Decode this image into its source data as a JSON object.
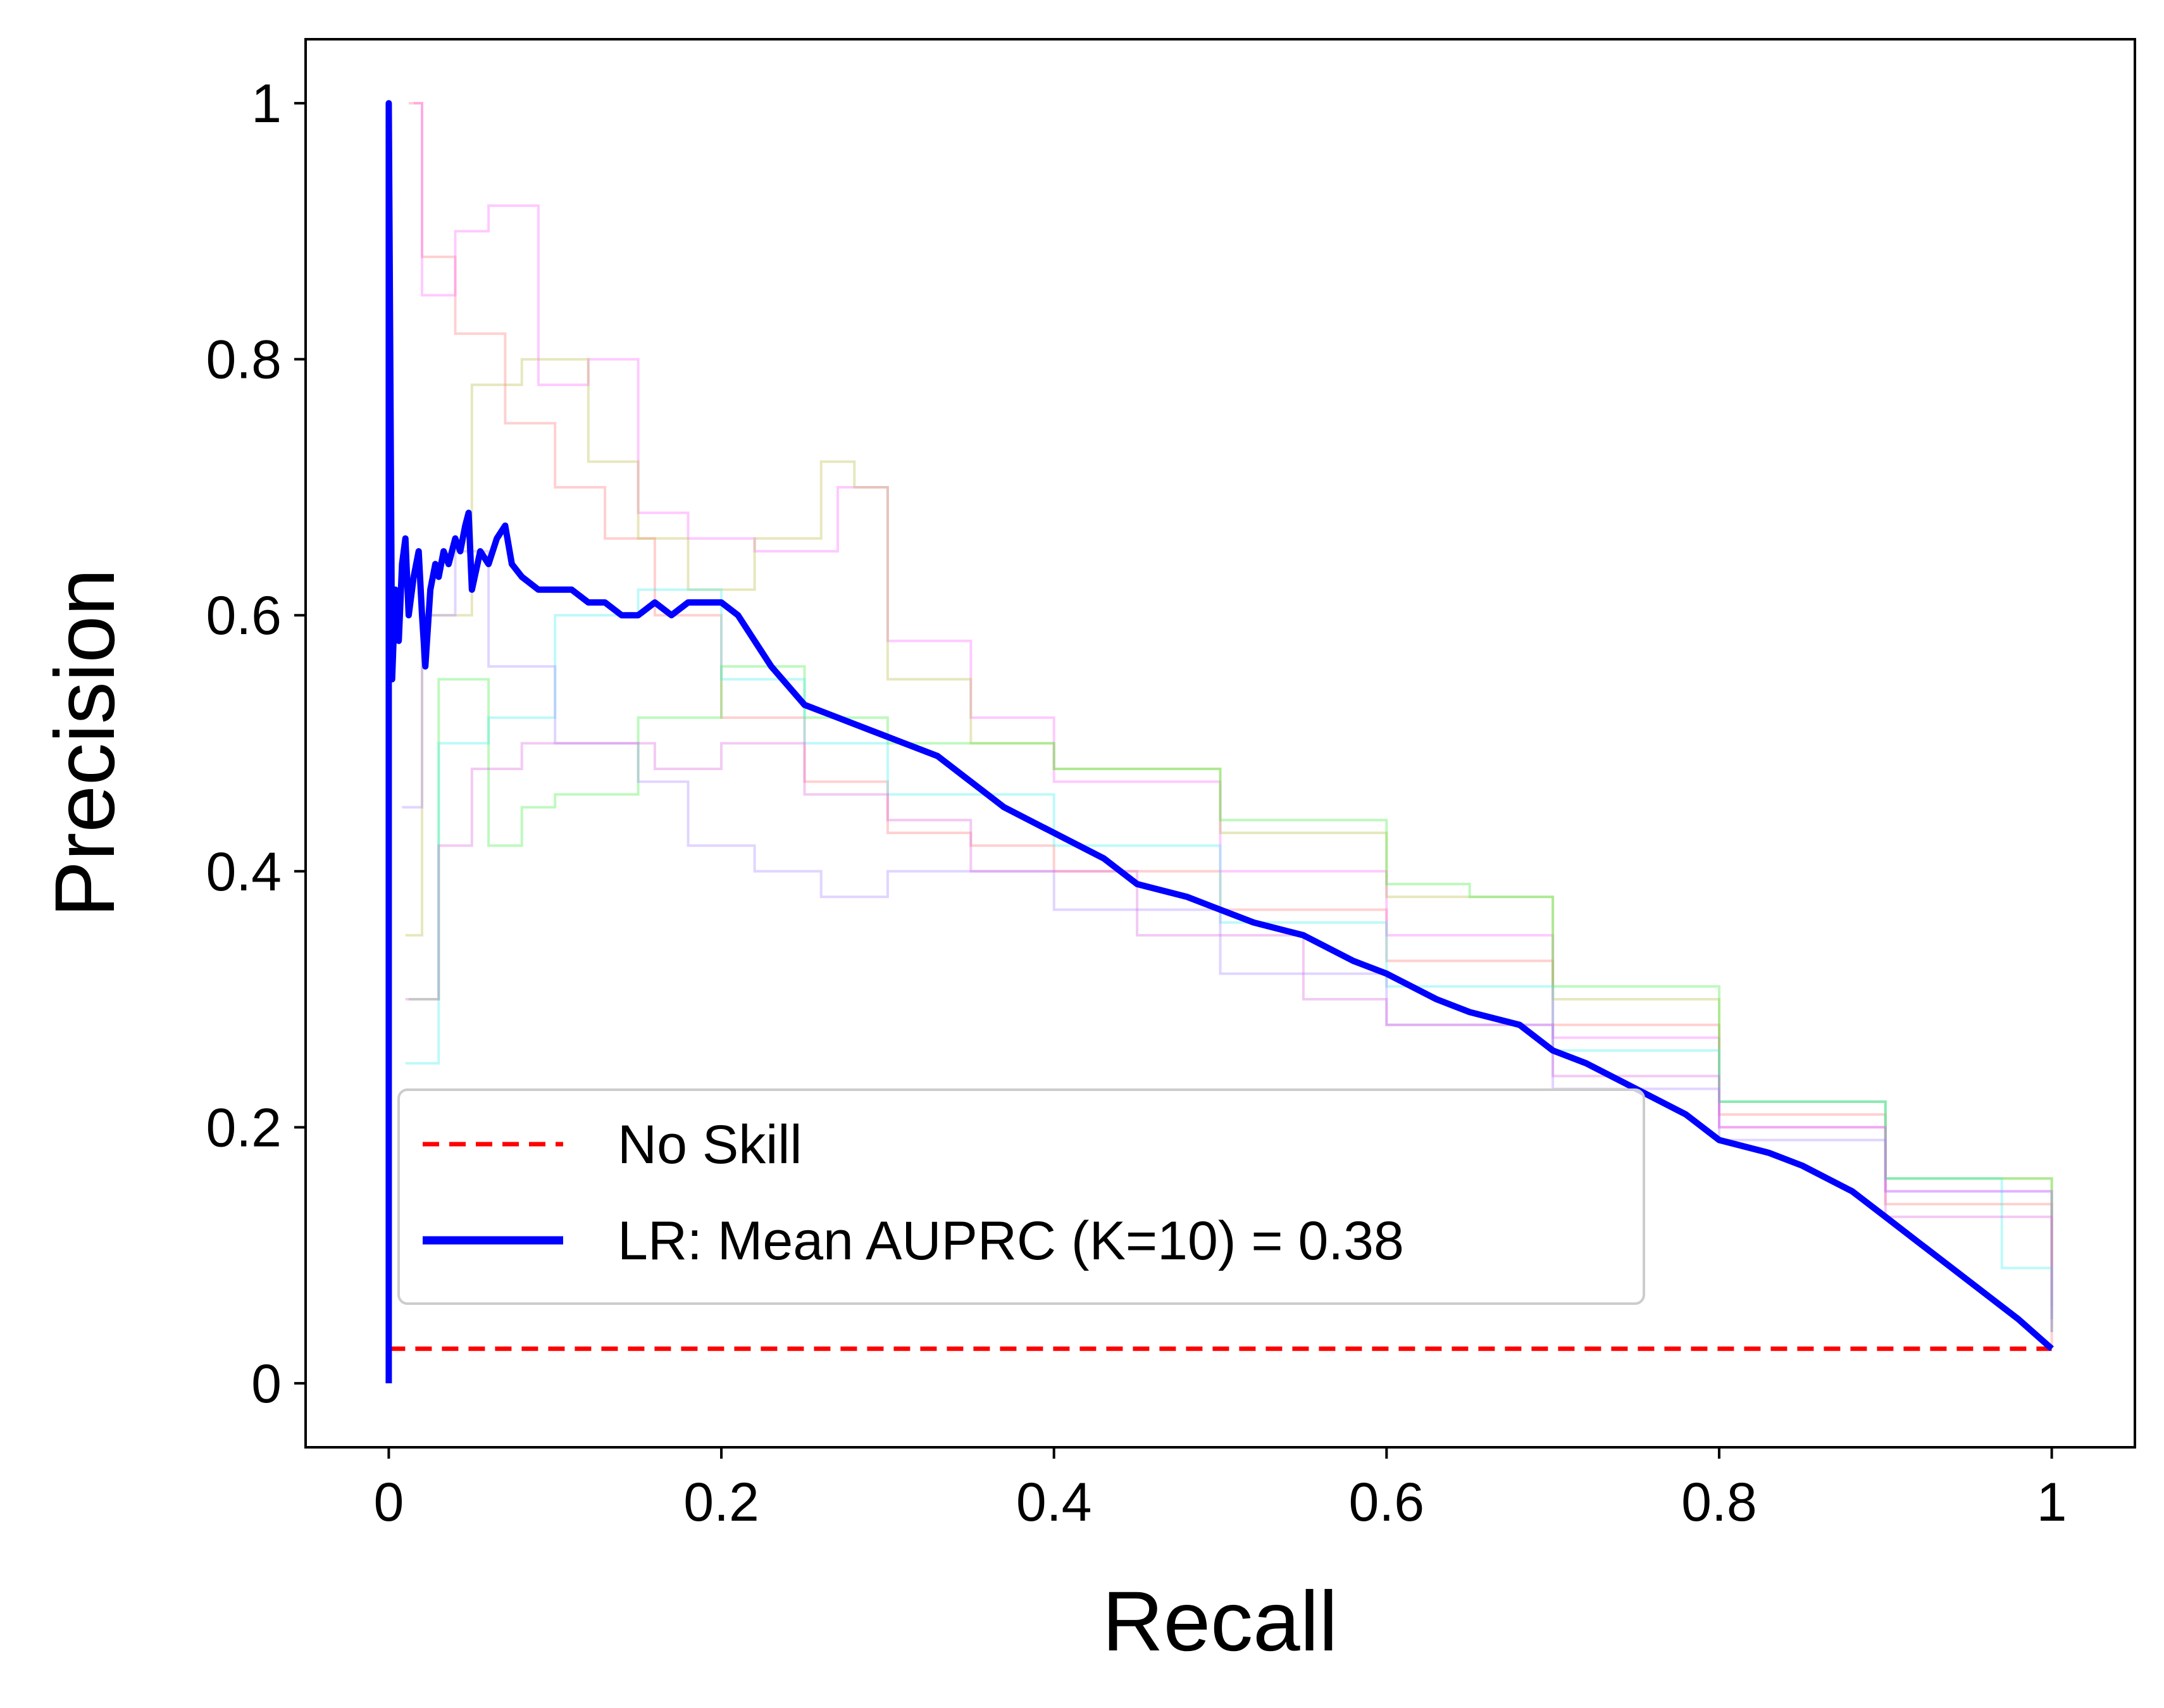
{
  "chart_data": {
    "type": "line",
    "title": "",
    "xlabel": "Recall",
    "ylabel": "Precision",
    "xlim": [
      -0.05,
      1.05
    ],
    "ylim": [
      -0.05,
      1.05
    ],
    "xticks": [
      0,
      0.2,
      0.4,
      0.6,
      0.8,
      1
    ],
    "xtick_labels": [
      "0",
      "0.2",
      "0.4",
      "0.6",
      "0.8",
      "1"
    ],
    "yticks": [
      0,
      0.2,
      0.4,
      0.6,
      0.8,
      1
    ],
    "ytick_labels": [
      "0",
      "0.2",
      "0.4",
      "0.6",
      "0.8",
      "1"
    ],
    "grid": false,
    "legend_position": "lower-left",
    "series": [
      {
        "name": "No Skill",
        "color": "#ff0000",
        "style": "dashed",
        "x": [
          0,
          1
        ],
        "y": [
          0.027,
          0.027
        ]
      },
      {
        "name": "LR: Mean AUPRC (K=10) = 0.38",
        "color": "#0000ff",
        "style": "solid",
        "x": [
          0,
          0,
          0.002,
          0.004,
          0.006,
          0.008,
          0.01,
          0.012,
          0.015,
          0.018,
          0.02,
          0.022,
          0.025,
          0.028,
          0.03,
          0.033,
          0.036,
          0.04,
          0.043,
          0.046,
          0.048,
          0.05,
          0.055,
          0.06,
          0.065,
          0.07,
          0.074,
          0.08,
          0.09,
          0.1,
          0.11,
          0.12,
          0.13,
          0.14,
          0.15,
          0.16,
          0.17,
          0.18,
          0.19,
          0.2,
          0.21,
          0.22,
          0.23,
          0.25,
          0.27,
          0.29,
          0.31,
          0.33,
          0.35,
          0.37,
          0.4,
          0.43,
          0.45,
          0.48,
          0.5,
          0.52,
          0.55,
          0.58,
          0.6,
          0.63,
          0.65,
          0.68,
          0.7,
          0.72,
          0.75,
          0.78,
          0.8,
          0.83,
          0.85,
          0.88,
          0.9,
          0.92,
          0.94,
          0.96,
          0.98,
          1
        ],
        "y": [
          0,
          1,
          0.55,
          0.62,
          0.58,
          0.64,
          0.66,
          0.6,
          0.63,
          0.65,
          0.6,
          0.56,
          0.62,
          0.64,
          0.63,
          0.65,
          0.64,
          0.66,
          0.65,
          0.67,
          0.68,
          0.62,
          0.65,
          0.64,
          0.66,
          0.67,
          0.64,
          0.63,
          0.62,
          0.62,
          0.62,
          0.61,
          0.61,
          0.6,
          0.6,
          0.61,
          0.6,
          0.61,
          0.61,
          0.61,
          0.6,
          0.58,
          0.56,
          0.53,
          0.52,
          0.51,
          0.5,
          0.49,
          0.47,
          0.45,
          0.43,
          0.41,
          0.39,
          0.38,
          0.37,
          0.36,
          0.35,
          0.33,
          0.32,
          0.3,
          0.29,
          0.28,
          0.26,
          0.25,
          0.23,
          0.21,
          0.19,
          0.18,
          0.17,
          0.15,
          0.13,
          0.11,
          0.09,
          0.07,
          0.05,
          0.027
        ]
      }
    ],
    "fold_curves": [
      {
        "color": "#ff7777",
        "x": [
          0.012,
          0.02,
          0.04,
          0.07,
          0.1,
          0.13,
          0.16,
          0.2,
          0.25,
          0.3,
          0.35,
          0.4,
          0.5,
          0.6,
          0.7,
          0.8,
          0.9,
          1
        ],
        "y": [
          1,
          0.88,
          0.82,
          0.75,
          0.7,
          0.66,
          0.6,
          0.52,
          0.47,
          0.43,
          0.42,
          0.4,
          0.37,
          0.33,
          0.28,
          0.21,
          0.14,
          0.027
        ]
      },
      {
        "color": "#ff66ff",
        "x": [
          0.015,
          0.02,
          0.04,
          0.06,
          0.09,
          0.12,
          0.15,
          0.18,
          0.22,
          0.27,
          0.3,
          0.35,
          0.4,
          0.5,
          0.6,
          0.7,
          0.8,
          0.9,
          1
        ],
        "y": [
          1,
          0.85,
          0.9,
          0.92,
          0.78,
          0.8,
          0.68,
          0.66,
          0.65,
          0.7,
          0.58,
          0.52,
          0.47,
          0.4,
          0.35,
          0.27,
          0.2,
          0.15,
          0.06
        ]
      },
      {
        "color": "#bbbb44",
        "x": [
          0.01,
          0.02,
          0.05,
          0.08,
          0.12,
          0.15,
          0.18,
          0.22,
          0.26,
          0.28,
          0.3,
          0.35,
          0.4,
          0.5,
          0.6,
          0.7,
          0.8,
          0.9,
          1
        ],
        "y": [
          0.35,
          0.6,
          0.78,
          0.8,
          0.72,
          0.66,
          0.62,
          0.66,
          0.72,
          0.7,
          0.55,
          0.5,
          0.48,
          0.43,
          0.38,
          0.3,
          0.22,
          0.16,
          0.04
        ]
      },
      {
        "color": "#44ee44",
        "x": [
          0.012,
          0.03,
          0.06,
          0.08,
          0.1,
          0.15,
          0.2,
          0.25,
          0.3,
          0.4,
          0.5,
          0.6,
          0.65,
          0.7,
          0.8,
          0.9,
          1
        ],
        "y": [
          0.3,
          0.55,
          0.42,
          0.45,
          0.46,
          0.52,
          0.56,
          0.52,
          0.5,
          0.48,
          0.44,
          0.39,
          0.38,
          0.31,
          0.22,
          0.16,
          0.05
        ]
      },
      {
        "color": "#44eeee",
        "x": [
          0.01,
          0.03,
          0.06,
          0.1,
          0.15,
          0.2,
          0.25,
          0.3,
          0.4,
          0.5,
          0.6,
          0.7,
          0.8,
          0.9,
          0.97,
          1
        ],
        "y": [
          0.25,
          0.5,
          0.52,
          0.6,
          0.62,
          0.55,
          0.5,
          0.46,
          0.42,
          0.36,
          0.31,
          0.26,
          0.22,
          0.16,
          0.09,
          0.04
        ]
      },
      {
        "color": "#aa88ff",
        "x": [
          0.008,
          0.02,
          0.04,
          0.06,
          0.1,
          0.15,
          0.18,
          0.22,
          0.26,
          0.3,
          0.4,
          0.5,
          0.6,
          0.7,
          0.8,
          0.9,
          1
        ],
        "y": [
          0.45,
          0.6,
          0.65,
          0.56,
          0.5,
          0.47,
          0.42,
          0.4,
          0.38,
          0.4,
          0.37,
          0.32,
          0.28,
          0.23,
          0.19,
          0.15,
          0.05
        ]
      },
      {
        "color": "#dd66dd",
        "x": [
          0.01,
          0.03,
          0.05,
          0.08,
          0.12,
          0.16,
          0.2,
          0.25,
          0.3,
          0.35,
          0.45,
          0.55,
          0.6,
          0.7,
          0.8,
          0.9,
          1
        ],
        "y": [
          0.3,
          0.42,
          0.48,
          0.5,
          0.5,
          0.48,
          0.5,
          0.46,
          0.44,
          0.4,
          0.35,
          0.3,
          0.28,
          0.24,
          0.2,
          0.13,
          0.04
        ]
      }
    ]
  },
  "legend": {
    "no_skill_label": "No Skill",
    "model_label": "LR: Mean AUPRC (K=10) = 0.38"
  }
}
